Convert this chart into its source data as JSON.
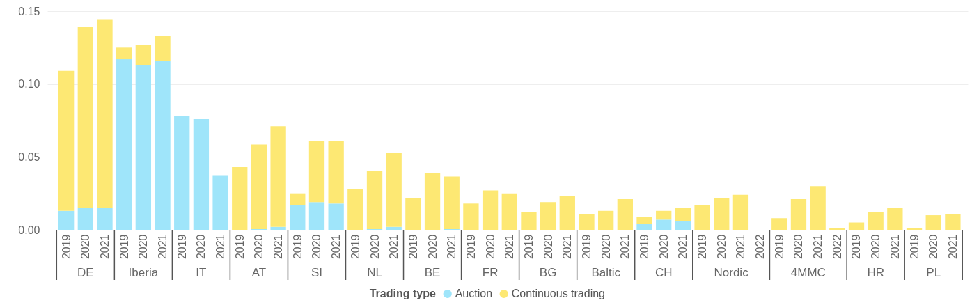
{
  "chart_data": {
    "type": "bar",
    "stacked": true,
    "legend_title": "Trading type",
    "legend": "bottom",
    "grid": "y",
    "categories": [
      "2019",
      "2020",
      "2021",
      "2019",
      "2020",
      "2021",
      "2019",
      "2020",
      "2021",
      "2019",
      "2020",
      "2021",
      "2019",
      "2020",
      "2021",
      "2019",
      "2020",
      "2021",
      "2019",
      "2020",
      "2021",
      "2019",
      "2020",
      "2021",
      "2019",
      "2020",
      "2021",
      "2019",
      "2020",
      "2021",
      "2019",
      "2020",
      "2021",
      "2019",
      "2020",
      "2021",
      "2022",
      "2019",
      "2020",
      "2021",
      "2022",
      "2019",
      "2020",
      "2021",
      "2019",
      "2020",
      "2021"
    ],
    "annotations": [
      "DE",
      "Iberia",
      "IT",
      "AT",
      "SI",
      "NL",
      "BE",
      "FR",
      "BG",
      "Baltic",
      "CH",
      "Nordic",
      "4MMC",
      "HR",
      "PL"
    ],
    "series": [
      {
        "name": "Auction",
        "color": "#9fe5fa",
        "values": [
          0.013,
          0.015,
          0.015,
          0.117,
          0.113,
          0.116,
          0.078,
          0.076,
          0.037,
          null,
          0.0005,
          0.002,
          0.017,
          0.019,
          0.018,
          null,
          0.0005,
          0.002,
          null,
          null,
          0.0005,
          null,
          null,
          null,
          null,
          null,
          null,
          null,
          null,
          null,
          0.004,
          0.007,
          0.006,
          null,
          null,
          null,
          null,
          null,
          null,
          null,
          null,
          null,
          null,
          null,
          null,
          null,
          null
        ]
      },
      {
        "name": "Continuous trading",
        "color": "#fde873",
        "values": [
          0.096,
          0.124,
          0.129,
          0.008,
          0.014,
          0.017,
          null,
          null,
          null,
          0.043,
          0.058,
          0.069,
          0.008,
          0.042,
          0.043,
          0.028,
          0.04,
          0.051,
          0.022,
          0.039,
          0.036,
          0.018,
          0.027,
          0.025,
          0.012,
          0.019,
          0.023,
          0.011,
          0.013,
          0.021,
          0.005,
          0.006,
          0.009,
          0.017,
          0.022,
          0.024,
          null,
          0.008,
          0.021,
          0.03,
          0.001,
          0.005,
          0.012,
          0.015,
          0.001,
          0.01,
          0.011
        ]
      }
    ],
    "ylim": [
      0,
      0.15
    ],
    "yticks": [
      {
        "value": 0,
        "label": "0.00"
      },
      0.05,
      {
        "value": 0.1,
        "label": "0.10"
      },
      0.15
    ]
  }
}
